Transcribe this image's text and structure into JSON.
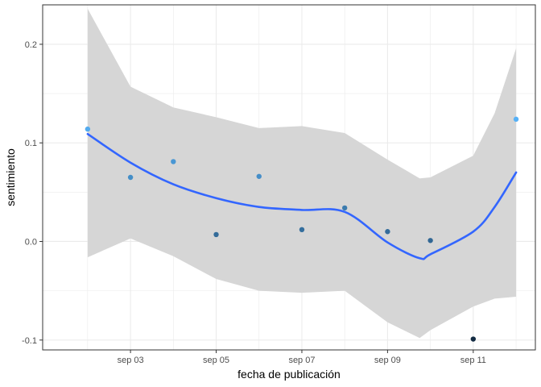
{
  "chart_data": {
    "type": "scatter",
    "xlabel": "fecha de publicación",
    "ylabel": "sentimiento",
    "x_ticks": [
      "sep 03",
      "sep 05",
      "sep 07",
      "sep 09",
      "sep 11"
    ],
    "y_ticks": [
      "-0.1",
      "0.0",
      "0.1",
      "0.2"
    ],
    "x_domain": [
      "2023-09-01",
      "2023-09-12"
    ],
    "ylim": [
      -0.11,
      0.24
    ],
    "grid": true,
    "points": [
      {
        "x": "2023-09-02",
        "y": 0.114
      },
      {
        "x": "2023-09-03",
        "y": 0.065
      },
      {
        "x": "2023-09-04",
        "y": 0.081
      },
      {
        "x": "2023-09-05",
        "y": 0.007
      },
      {
        "x": "2023-09-06",
        "y": 0.066
      },
      {
        "x": "2023-09-07",
        "y": 0.012
      },
      {
        "x": "2023-09-08",
        "y": 0.034
      },
      {
        "x": "2023-09-09",
        "y": 0.01
      },
      {
        "x": "2023-09-10",
        "y": 0.001
      },
      {
        "x": "2023-09-11",
        "y": -0.099
      },
      {
        "x": "2023-09-12",
        "y": 0.124
      }
    ],
    "smooth": {
      "x": [
        "2023-09-02",
        "2023-09-03",
        "2023-09-04",
        "2023-09-05",
        "2023-09-06",
        "2023-09-07",
        "2023-09-08",
        "2023-09-09",
        "2023-09-09T18:00",
        "2023-09-10",
        "2023-09-11",
        "2023-09-11T12:00",
        "2023-09-12"
      ],
      "fit": [
        0.109,
        0.08,
        0.058,
        0.044,
        0.035,
        0.032,
        0.03,
        -0.001,
        -0.017,
        -0.013,
        0.01,
        0.035,
        0.07
      ],
      "lower": [
        -0.016,
        0.003,
        -0.015,
        -0.038,
        -0.05,
        -0.052,
        -0.05,
        -0.082,
        -0.098,
        -0.09,
        -0.066,
        -0.058,
        -0.056
      ],
      "upper": [
        0.236,
        0.157,
        0.136,
        0.126,
        0.115,
        0.117,
        0.11,
        0.083,
        0.064,
        0.065,
        0.087,
        0.13,
        0.196
      ]
    },
    "colors": {
      "smooth_line": "#3366FF",
      "ribbon": "#d6d6d6",
      "point_low": "#132B43",
      "point_high": "#56B1F7"
    }
  }
}
